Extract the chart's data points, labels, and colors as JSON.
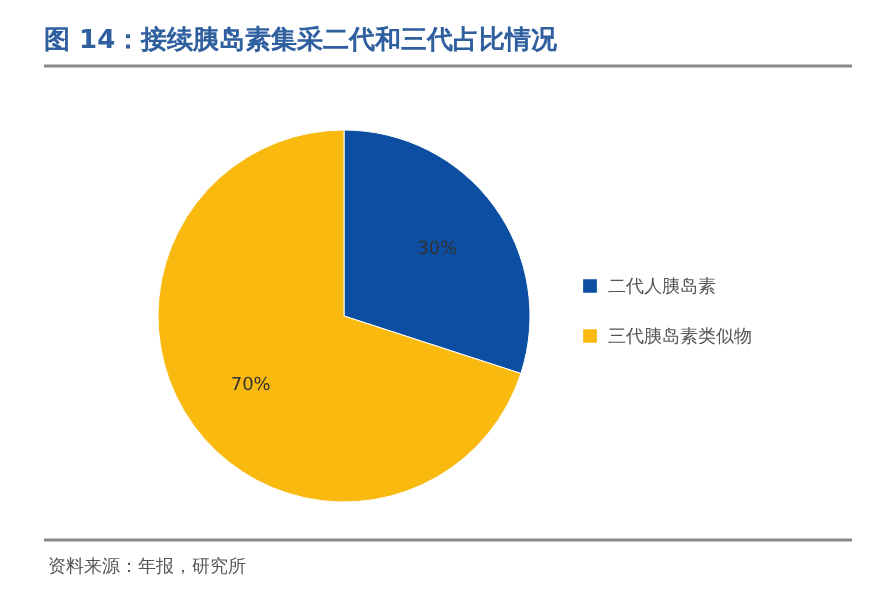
{
  "chart_data": {
    "type": "pie",
    "title": "图 14：接续胰岛素集采二代和三代占比情况",
    "categories": [
      "二代人胰岛素",
      "三代胰岛素类似物"
    ],
    "values": [
      30,
      70
    ],
    "colors": [
      "#0b4ea2",
      "#f9b90f"
    ],
    "value_labels": [
      "30%",
      "70%"
    ],
    "legend": "right",
    "annotations": [
      "资料来源：年报，研究所"
    ]
  }
}
